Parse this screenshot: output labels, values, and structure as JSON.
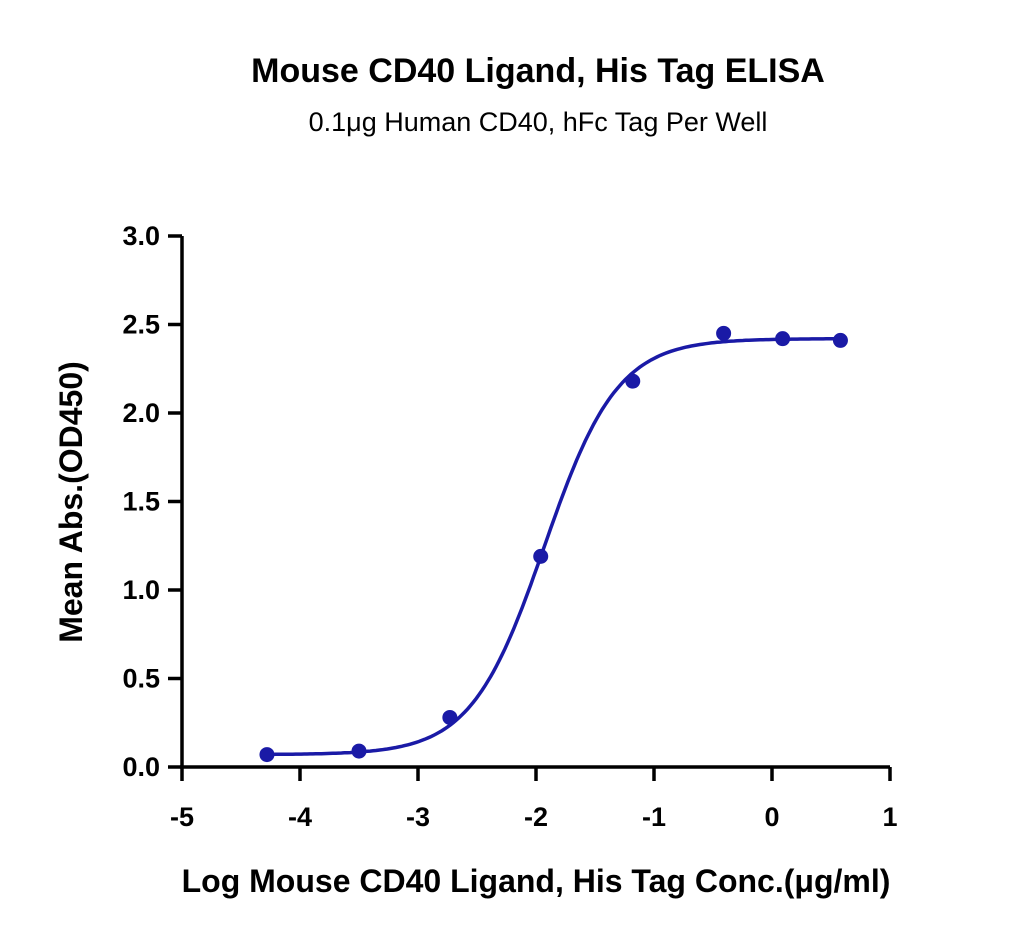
{
  "chart_data": {
    "type": "scatter",
    "title": "Mouse CD40 Ligand, His Tag ELISA",
    "subtitle": "0.1μg Human CD40, hFc Tag Per Well",
    "xlabel": "Log Mouse CD40 Ligand, His Tag Conc.(μg/ml)",
    "ylabel": "Mean Abs.(OD450)",
    "xlim": [
      -5,
      1
    ],
    "ylim": [
      0,
      3
    ],
    "x_ticks": [
      "-5",
      "-4",
      "-3",
      "-2",
      "-1",
      "0",
      "1"
    ],
    "y_ticks": [
      "0.0",
      "0.5",
      "1.0",
      "1.5",
      "2.0",
      "2.5",
      "3.0"
    ],
    "grid": false,
    "fit": "sigmoidal",
    "color": "#1a1aa6",
    "points": {
      "x": [
        -4.28,
        -3.5,
        -2.73,
        -1.96,
        -1.18,
        -0.41,
        0.09,
        0.58
      ],
      "y": [
        0.07,
        0.09,
        0.28,
        1.19,
        2.18,
        2.45,
        2.42,
        2.41
      ]
    }
  }
}
